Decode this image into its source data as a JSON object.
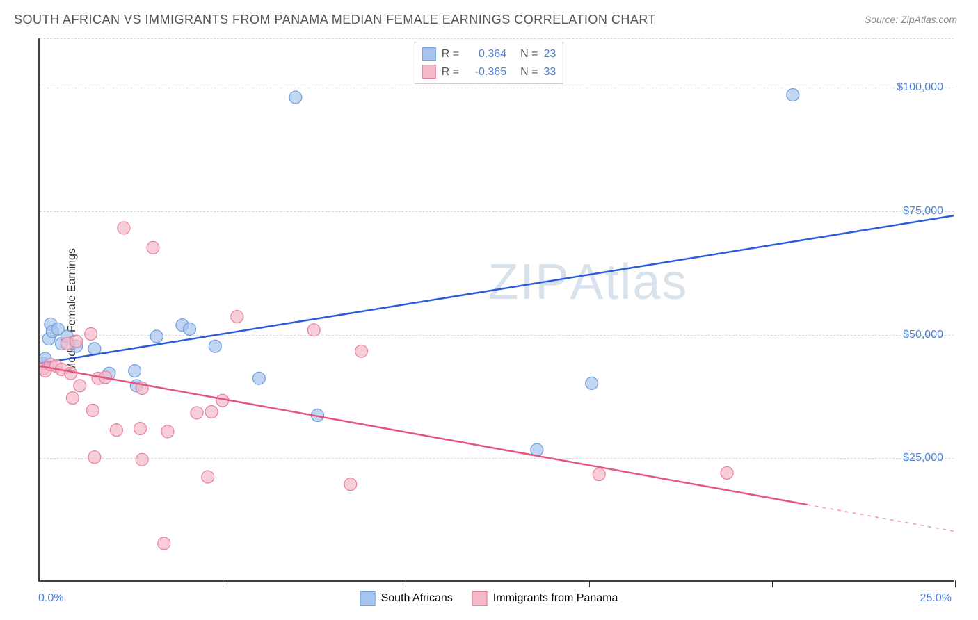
{
  "title": "SOUTH AFRICAN VS IMMIGRANTS FROM PANAMA MEDIAN FEMALE EARNINGS CORRELATION CHART",
  "source": "Source: ZipAtlas.com",
  "watermark_bold": "ZIP",
  "watermark_light": "Atlas",
  "y_axis_label": "Median Female Earnings",
  "chart": {
    "type": "scatter",
    "background_color": "#ffffff",
    "grid_color": "#d8d8d8",
    "axis_color": "#404040",
    "xlim": [
      0,
      25
    ],
    "ylim": [
      0,
      110000
    ],
    "y_gridlines": [
      25000,
      50000,
      75000,
      100000,
      110000
    ],
    "y_tick_labels": [
      {
        "value": 25000,
        "label": "$25,000"
      },
      {
        "value": 50000,
        "label": "$50,000"
      },
      {
        "value": 75000,
        "label": "$75,000"
      },
      {
        "value": 100000,
        "label": "$100,000"
      }
    ],
    "x_tick_positions": [
      0,
      5,
      10,
      15,
      20,
      25
    ],
    "x_tick_labels": [
      {
        "value": 0,
        "label": "0.0%"
      },
      {
        "value": 25,
        "label": "25.0%"
      }
    ],
    "series": [
      {
        "name": "South Africans",
        "color_fill": "#a7c5ec",
        "color_stroke": "#6f9edb",
        "marker_radius": 9,
        "marker_opacity": 0.7,
        "trend_color": "#2a5bda",
        "trend_width": 2.5,
        "trend_start": {
          "x": 0,
          "y": 44000
        },
        "trend_end": {
          "x": 25,
          "y": 74000
        },
        "trend_dashed_start_x": 25,
        "r_value": "0.364",
        "n_value": "23",
        "points": [
          {
            "x": 0.1,
            "y": 44000
          },
          {
            "x": 0.15,
            "y": 45000
          },
          {
            "x": 0.25,
            "y": 49000
          },
          {
            "x": 0.3,
            "y": 52000
          },
          {
            "x": 0.35,
            "y": 50500
          },
          {
            "x": 0.5,
            "y": 51000
          },
          {
            "x": 0.6,
            "y": 48000
          },
          {
            "x": 0.75,
            "y": 49500
          },
          {
            "x": 1.0,
            "y": 47500
          },
          {
            "x": 1.5,
            "y": 47000
          },
          {
            "x": 1.9,
            "y": 42000
          },
          {
            "x": 2.6,
            "y": 42500
          },
          {
            "x": 2.65,
            "y": 39500
          },
          {
            "x": 3.2,
            "y": 49500
          },
          {
            "x": 3.9,
            "y": 51800
          },
          {
            "x": 4.1,
            "y": 51000
          },
          {
            "x": 4.8,
            "y": 47500
          },
          {
            "x": 6.0,
            "y": 41000
          },
          {
            "x": 7.0,
            "y": 98000
          },
          {
            "x": 7.6,
            "y": 33500
          },
          {
            "x": 13.6,
            "y": 26500
          },
          {
            "x": 15.1,
            "y": 40000
          },
          {
            "x": 20.6,
            "y": 98500
          }
        ]
      },
      {
        "name": "Immigrants from Panama",
        "color_fill": "#f4b8c7",
        "color_stroke": "#e87ea0",
        "marker_radius": 9,
        "marker_opacity": 0.7,
        "trend_color": "#e4567c",
        "trend_width": 2.5,
        "trend_start": {
          "x": 0,
          "y": 43500
        },
        "trend_end": {
          "x": 25,
          "y": 10000
        },
        "trend_dashed_start_x": 21,
        "r_value": "-0.365",
        "n_value": "33",
        "points": [
          {
            "x": 0.1,
            "y": 43000
          },
          {
            "x": 0.15,
            "y": 42500
          },
          {
            "x": 0.3,
            "y": 43800
          },
          {
            "x": 0.45,
            "y": 43500
          },
          {
            "x": 0.6,
            "y": 42800
          },
          {
            "x": 0.75,
            "y": 48000
          },
          {
            "x": 0.85,
            "y": 42000
          },
          {
            "x": 0.9,
            "y": 37000
          },
          {
            "x": 1.0,
            "y": 48500
          },
          {
            "x": 1.1,
            "y": 39500
          },
          {
            "x": 1.4,
            "y": 50000
          },
          {
            "x": 1.45,
            "y": 34500
          },
          {
            "x": 1.5,
            "y": 25000
          },
          {
            "x": 1.6,
            "y": 41000
          },
          {
            "x": 1.8,
            "y": 41200
          },
          {
            "x": 2.1,
            "y": 30500
          },
          {
            "x": 2.3,
            "y": 71500
          },
          {
            "x": 2.75,
            "y": 30800
          },
          {
            "x": 2.8,
            "y": 24500
          },
          {
            "x": 2.8,
            "y": 39000
          },
          {
            "x": 3.1,
            "y": 67500
          },
          {
            "x": 3.4,
            "y": 7500
          },
          {
            "x": 3.5,
            "y": 30200
          },
          {
            "x": 4.3,
            "y": 34000
          },
          {
            "x": 4.6,
            "y": 21000
          },
          {
            "x": 4.7,
            "y": 34200
          },
          {
            "x": 5.0,
            "y": 36500
          },
          {
            "x": 5.4,
            "y": 53500
          },
          {
            "x": 7.5,
            "y": 50800
          },
          {
            "x": 8.5,
            "y": 19500
          },
          {
            "x": 8.8,
            "y": 46500
          },
          {
            "x": 15.3,
            "y": 21500
          },
          {
            "x": 18.8,
            "y": 21800
          }
        ]
      }
    ]
  },
  "legend_labels": {
    "r_prefix": "R =",
    "n_prefix": "N ="
  }
}
